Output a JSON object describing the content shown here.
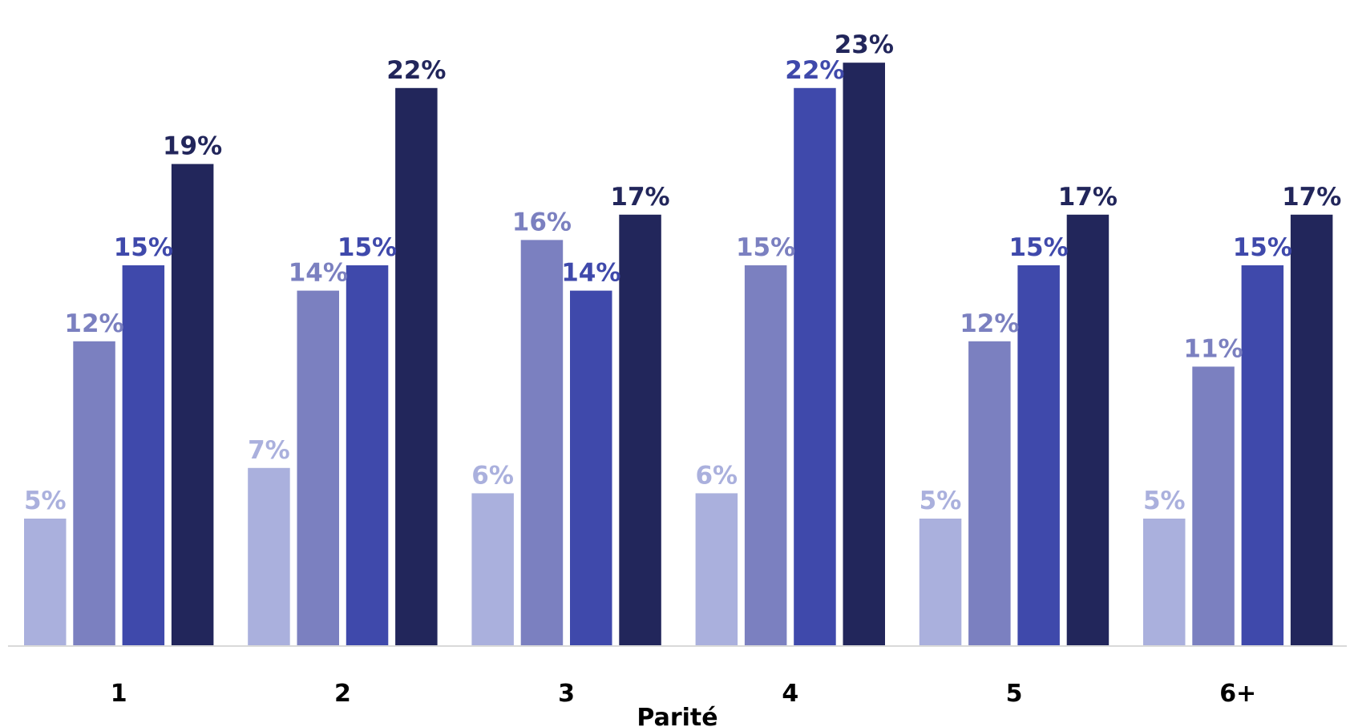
{
  "chart_data": {
    "type": "bar",
    "title": "",
    "xlabel": "Parité",
    "ylabel": "",
    "categories": [
      "1",
      "2",
      "3",
      "4",
      "5",
      "6+"
    ],
    "ylim": [
      0,
      24
    ],
    "grid": false,
    "legend": "none",
    "value_suffix": "%",
    "series": [
      {
        "values": [
          5,
          7,
          6,
          6,
          5,
          5
        ],
        "color": "#aab0dd"
      },
      {
        "values": [
          12,
          14,
          16,
          15,
          12,
          11
        ],
        "color": "#7b80c0"
      },
      {
        "values": [
          15,
          15,
          14,
          22,
          15,
          15
        ],
        "color": "#3f49ab"
      },
      {
        "values": [
          19,
          22,
          17,
          23,
          17,
          17
        ],
        "color": "#22265b"
      }
    ]
  }
}
